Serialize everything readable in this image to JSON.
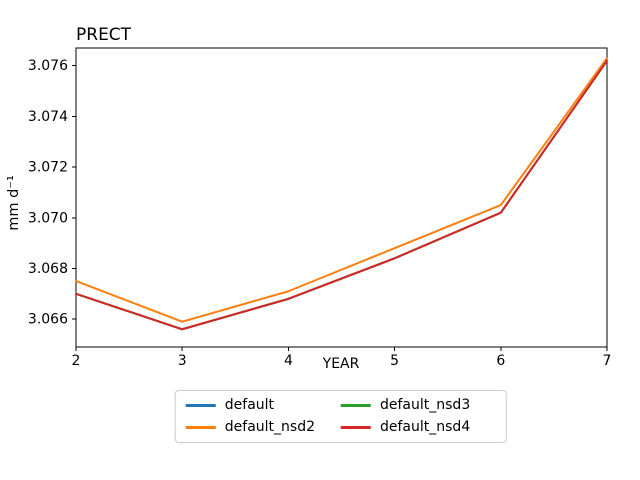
{
  "figure": {
    "background": "#ffffff",
    "axes_color": "#000000"
  },
  "chart_data": {
    "type": "line",
    "title": "PRECT",
    "xlabel": "YEAR",
    "ylabel": "mm d⁻¹",
    "grid": false,
    "x": [
      2,
      3,
      4,
      5,
      6,
      7
    ],
    "xlim": [
      2,
      7
    ],
    "ylim": [
      3.0649,
      3.0767
    ],
    "xticks": [
      2,
      3,
      4,
      5,
      6,
      7
    ],
    "xtick_labels": [
      "2",
      "3",
      "4",
      "5",
      "6",
      "7"
    ],
    "yticks": [
      3.066,
      3.068,
      3.07,
      3.072,
      3.074,
      3.076
    ],
    "ytick_labels": [
      "3.066",
      "3.068",
      "3.070",
      "3.072",
      "3.074",
      "3.076"
    ],
    "series": [
      {
        "name": "default",
        "color": "#1f77b4",
        "values": [
          3.067,
          3.0656,
          3.0668,
          3.0684,
          3.0702,
          3.0762
        ]
      },
      {
        "name": "default_nsd2",
        "color": "#ff7f0e",
        "values": [
          3.0675,
          3.0659,
          3.0671,
          3.0688,
          3.0705,
          3.0763
        ]
      },
      {
        "name": "default_nsd3",
        "color": "#2ca02c",
        "values": [
          3.067,
          3.0656,
          3.0668,
          3.0684,
          3.0702,
          3.0762
        ]
      },
      {
        "name": "default_nsd4",
        "color": "#d62728",
        "values": [
          3.067,
          3.0656,
          3.0668,
          3.0684,
          3.0702,
          3.0762
        ]
      }
    ],
    "legend": {
      "position": "below center",
      "ncol": 3,
      "entries": [
        "default",
        "default_nsd2",
        "default_nsd3",
        "default_nsd4"
      ]
    }
  }
}
